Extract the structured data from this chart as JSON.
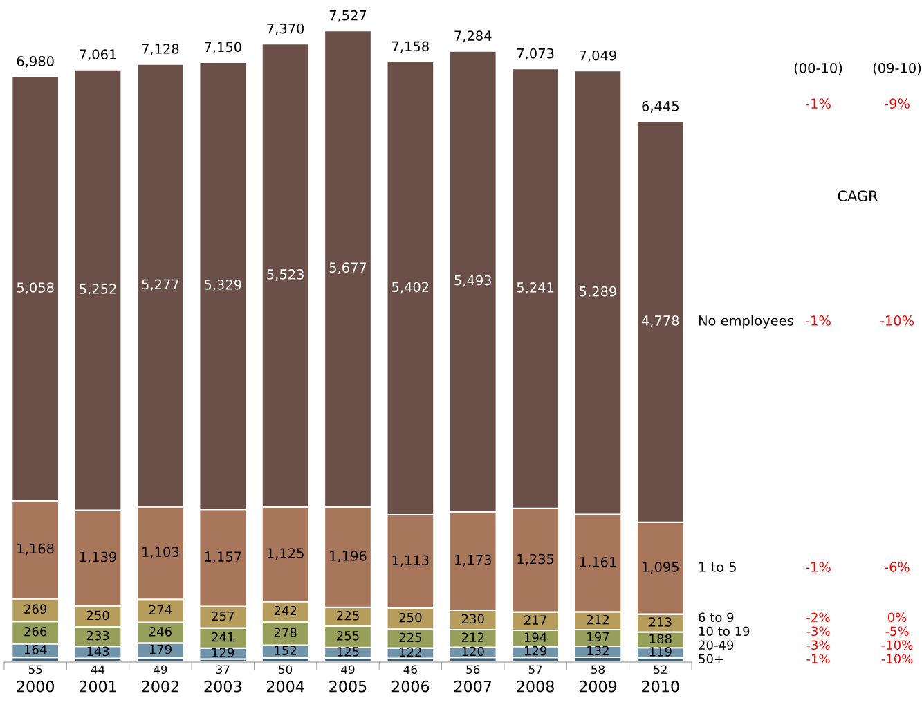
{
  "chart_data": {
    "type": "bar",
    "stacked": true,
    "legend": false,
    "grid": false,
    "categories": [
      "2000",
      "2001",
      "2002",
      "2003",
      "2004",
      "2005",
      "2006",
      "2007",
      "2008",
      "2009",
      "2010"
    ],
    "series": [
      {
        "name": "50+",
        "color": "#3f6079",
        "values": [
          55,
          44,
          49,
          37,
          50,
          49,
          46,
          56,
          57,
          58,
          52
        ],
        "value_labels": [
          "55",
          "44",
          "49",
          "37",
          "50",
          "49",
          "46",
          "56",
          "57",
          "58",
          "52"
        ]
      },
      {
        "name": "20-49",
        "color": "#7095aa",
        "values": [
          164,
          143,
          179,
          129,
          152,
          125,
          122,
          120,
          129,
          132,
          119
        ],
        "value_labels": [
          "164",
          "143",
          "179",
          "129",
          "152",
          "125",
          "122",
          "120",
          "129",
          "132",
          "119"
        ]
      },
      {
        "name": "10 to 19",
        "color": "#96a05a",
        "values": [
          266,
          233,
          246,
          241,
          278,
          255,
          225,
          212,
          194,
          197,
          188
        ],
        "value_labels": [
          "266",
          "233",
          "246",
          "241",
          "278",
          "255",
          "225",
          "212",
          "194",
          "197",
          "188"
        ]
      },
      {
        "name": "6 to 9",
        "color": "#b79d5c",
        "values": [
          269,
          250,
          274,
          257,
          242,
          225,
          250,
          230,
          217,
          212,
          213
        ],
        "value_labels": [
          "269",
          "250",
          "274",
          "257",
          "242",
          "225",
          "250",
          "230",
          "217",
          "212",
          "213"
        ]
      },
      {
        "name": "1 to 5",
        "color": "#a8765a",
        "values": [
          1168,
          1139,
          1103,
          1157,
          1125,
          1196,
          1113,
          1173,
          1235,
          1161,
          1095
        ],
        "value_labels": [
          "1,168",
          "1,139",
          "1,103",
          "1,157",
          "1,125",
          "1,196",
          "1,113",
          "1,173",
          "1,235",
          "1,161",
          "1,095"
        ]
      },
      {
        "name": "No employees",
        "color": "#6b5049",
        "values": [
          5058,
          5252,
          5277,
          5329,
          5523,
          5677,
          5402,
          5493,
          5241,
          5289,
          4778
        ],
        "value_labels": [
          "5,058",
          "5,252",
          "5,277",
          "5,329",
          "5,523",
          "5,677",
          "5,402",
          "5,493",
          "5,241",
          "5,289",
          "4,778"
        ]
      }
    ],
    "totals": [
      "6,980",
      "7,061",
      "7,128",
      "7,150",
      "7,370",
      "7,527",
      "7,158",
      "7,284",
      "7,073",
      "7,049",
      "6,445"
    ],
    "annotations": [
      "CAGR",
      "(00-10)",
      "(09-10)",
      "-1%",
      "-9%",
      "-1%",
      "-10%",
      "-3%",
      "-10%",
      "-3%",
      "-5%",
      "-2%",
      "0%",
      "-1%",
      "-6%",
      "-1%",
      "-10%"
    ]
  }
}
